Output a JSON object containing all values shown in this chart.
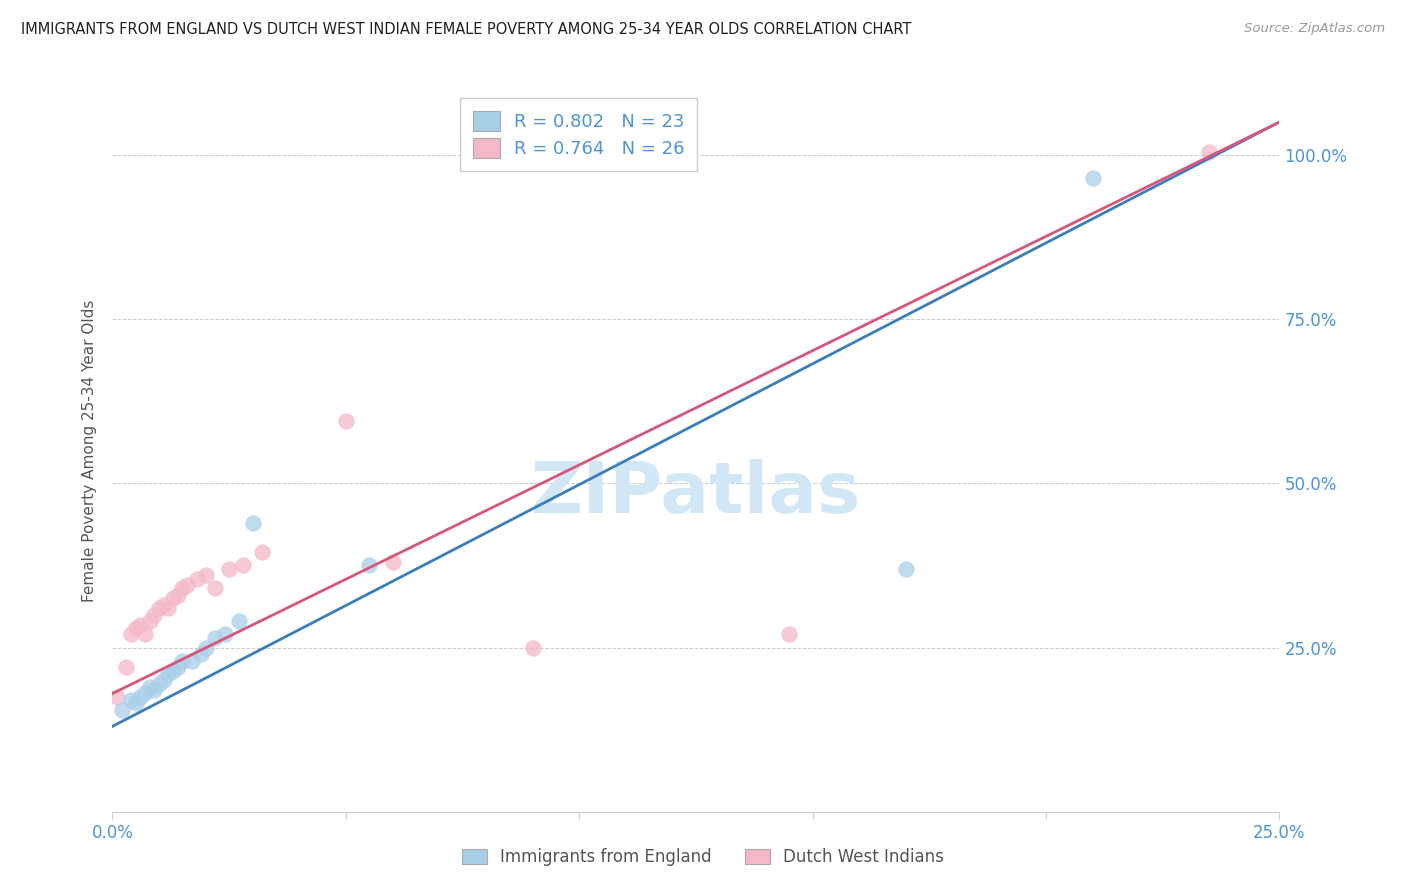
{
  "title": "IMMIGRANTS FROM ENGLAND VS DUTCH WEST INDIAN FEMALE POVERTY AMONG 25-34 YEAR OLDS CORRELATION CHART",
  "source_text": "Source: ZipAtlas.com",
  "ylabel": "Female Poverty Among 25-34 Year Olds",
  "xmin": 0.0,
  "xmax": 0.25,
  "ymin": 0.0,
  "ymax": 1.1,
  "yticks": [
    0.0,
    0.25,
    0.5,
    0.75,
    1.0
  ],
  "ytick_labels": [
    "",
    "25.0%",
    "50.0%",
    "75.0%",
    "100.0%"
  ],
  "xtick_positions": [
    0.0,
    0.05,
    0.1,
    0.15,
    0.2,
    0.25
  ],
  "xtick_labels": [
    "0.0%",
    "",
    "",
    "",
    "",
    "25.0%"
  ],
  "legend_r1": "R = 0.802",
  "legend_n1": "N = 23",
  "legend_r2": "R = 0.764",
  "legend_n2": "N = 26",
  "legend_label1": "Immigrants from England",
  "legend_label2": "Dutch West Indians",
  "color_blue": "#a8cfe8",
  "color_pink": "#f4b8c8",
  "color_line_blue": "#3a7ebf",
  "color_line_pink": "#d9567a",
  "title_color": "#222222",
  "axis_label_color": "#4d94db",
  "ylabel_color": "#555555",
  "background_color": "#ffffff",
  "watermark_text": "ZIPatlas",
  "watermark_color": "#cce5f5",
  "grid_color": "#cccccc",
  "dot_size": 130,
  "dot_alpha": 0.75,
  "blue_x": [
    0.002,
    0.004,
    0.005,
    0.006,
    0.007,
    0.008,
    0.009,
    0.01,
    0.011,
    0.012,
    0.013,
    0.014,
    0.015,
    0.017,
    0.019,
    0.02,
    0.022,
    0.024,
    0.027,
    0.03,
    0.055,
    0.17,
    0.21
  ],
  "blue_y": [
    0.155,
    0.17,
    0.165,
    0.175,
    0.18,
    0.19,
    0.185,
    0.195,
    0.2,
    0.21,
    0.215,
    0.22,
    0.23,
    0.23,
    0.24,
    0.25,
    0.265,
    0.27,
    0.29,
    0.44,
    0.375,
    0.37,
    0.965
  ],
  "pink_x": [
    0.001,
    0.003,
    0.004,
    0.005,
    0.006,
    0.007,
    0.008,
    0.009,
    0.01,
    0.011,
    0.012,
    0.013,
    0.014,
    0.015,
    0.016,
    0.018,
    0.02,
    0.022,
    0.025,
    0.028,
    0.032,
    0.05,
    0.06,
    0.09,
    0.145,
    0.235
  ],
  "pink_y": [
    0.175,
    0.22,
    0.27,
    0.28,
    0.285,
    0.27,
    0.29,
    0.3,
    0.31,
    0.315,
    0.31,
    0.325,
    0.33,
    0.34,
    0.345,
    0.355,
    0.36,
    0.34,
    0.37,
    0.375,
    0.395,
    0.595,
    0.38,
    0.25,
    0.27,
    1.005
  ],
  "blue_line_x0": 0.0,
  "blue_line_y0": 0.13,
  "blue_line_x1": 0.25,
  "blue_line_y1": 1.05,
  "pink_line_x0": 0.0,
  "pink_line_y0": 0.18,
  "pink_line_x1": 0.25,
  "pink_line_y1": 1.05
}
